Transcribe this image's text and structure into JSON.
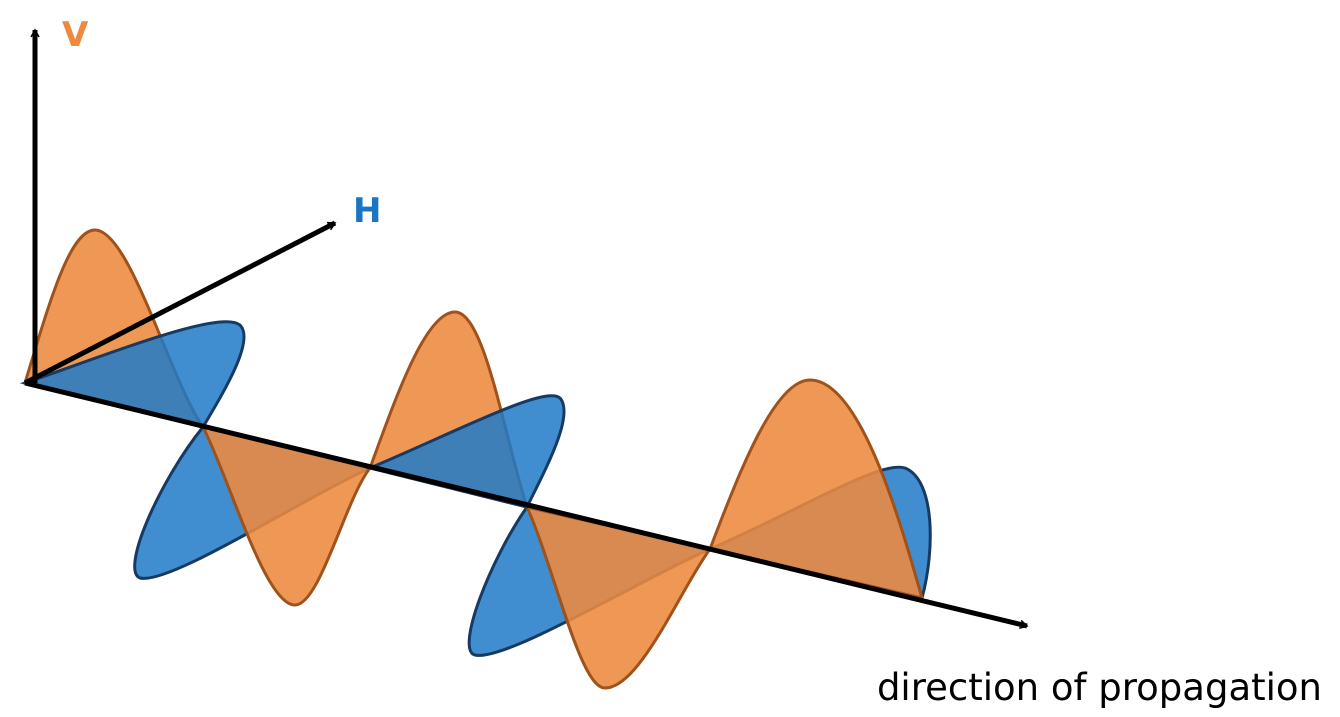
{
  "axes": {
    "vertical": {
      "label": "V"
    },
    "horizontal": {
      "label": "H"
    },
    "propagation": {
      "label": "direction of propagation"
    }
  }
}
